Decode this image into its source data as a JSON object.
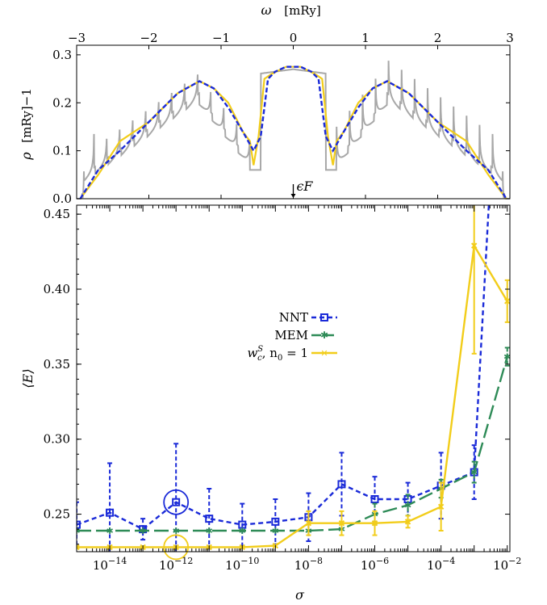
{
  "chart_data": [
    {
      "type": "line",
      "name": "spectral-density",
      "xlabel": "ω",
      "xunit": "[mRy]",
      "ylabel": "ρ",
      "yunit": "[mRy]−1",
      "annotation": "ϵF",
      "xlim": [
        -3,
        3
      ],
      "ylim": [
        0,
        0.32
      ],
      "xticks": [
        "−3",
        "−2",
        "−1",
        "0",
        "1",
        "2",
        "3"
      ],
      "yticks": [
        "0.0",
        "0.1",
        "0.2",
        "0.3"
      ],
      "colors": {
        "gray": "#a8a8a8",
        "yellow": "#f2cd1a",
        "blue": "#1a2ad8"
      },
      "blue_x": [
        -2.95,
        -2.7,
        -2.4,
        -2.0,
        -1.6,
        -1.3,
        -1.1,
        -0.9,
        -0.7,
        -0.55,
        -0.45,
        -0.35,
        -0.25,
        -0.1,
        0,
        0.1,
        0.25,
        0.35,
        0.45,
        0.55,
        0.7,
        0.9,
        1.1,
        1.3,
        1.6,
        2.0,
        2.4,
        2.7,
        2.95
      ],
      "blue_y": [
        0.0,
        0.06,
        0.1,
        0.16,
        0.22,
        0.245,
        0.23,
        0.19,
        0.14,
        0.1,
        0.13,
        0.25,
        0.265,
        0.275,
        0.275,
        0.275,
        0.265,
        0.25,
        0.13,
        0.1,
        0.14,
        0.19,
        0.23,
        0.245,
        0.22,
        0.16,
        0.1,
        0.06,
        0.0
      ],
      "yellow_x": [
        -2.95,
        -2.7,
        -2.4,
        -2.0,
        -1.6,
        -1.3,
        -1.1,
        -0.9,
        -0.7,
        -0.6,
        -0.55,
        -0.48,
        -0.4,
        -0.3,
        -0.1,
        0,
        0.1,
        0.3,
        0.4,
        0.48,
        0.55,
        0.6,
        0.7,
        0.9,
        1.1,
        1.3,
        1.6,
        2.0,
        2.4,
        2.7,
        2.95
      ],
      "yellow_y": [
        0.0,
        0.05,
        0.12,
        0.16,
        0.22,
        0.245,
        0.23,
        0.2,
        0.14,
        0.12,
        0.07,
        0.13,
        0.25,
        0.26,
        0.275,
        0.275,
        0.275,
        0.26,
        0.25,
        0.13,
        0.07,
        0.12,
        0.14,
        0.2,
        0.23,
        0.245,
        0.22,
        0.16,
        0.12,
        0.05,
        0.0
      ]
    },
    {
      "type": "line",
      "name": "energy-vs-sigma",
      "xlabel": "σ",
      "ylabel": "⟨E⟩",
      "xscale": "log",
      "xlim": [
        1e-15,
        0.012
      ],
      "ylim": [
        0.225,
        0.456
      ],
      "xticks": [
        {
          "value": 1e-14,
          "label": "10−14"
        },
        {
          "value": 1e-12,
          "label": "10−12"
        },
        {
          "value": 1e-10,
          "label": "10−10"
        },
        {
          "value": 1e-08,
          "label": "10−8"
        },
        {
          "value": 1e-06,
          "label": "10−6"
        },
        {
          "value": 0.0001,
          "label": "10−4"
        },
        {
          "value": 0.01,
          "label": "10−2"
        }
      ],
      "yticks": [
        "0.25",
        "0.30",
        "0.35",
        "0.40",
        "0.45"
      ],
      "legend_position": "center",
      "series": [
        {
          "name": "NNT",
          "color": "#1a2ad8",
          "dash": "6,4",
          "marker": "square",
          "x": [
            1e-15,
            1e-14,
            1e-13,
            1e-12,
            1e-11,
            1e-10,
            1e-09,
            1e-08,
            1e-07,
            1e-06,
            1e-05,
            0.0001,
            0.001,
            0.003
          ],
          "y": [
            0.243,
            0.251,
            0.24,
            0.258,
            0.247,
            0.243,
            0.245,
            0.248,
            0.27,
            0.26,
            0.26,
            0.269,
            0.278,
            0.47
          ],
          "err": [
            0.015,
            0.033,
            0.007,
            0.039,
            0.02,
            0.014,
            0.015,
            0.016,
            0.021,
            0.015,
            0.011,
            0.022,
            0.018,
            0.0
          ]
        },
        {
          "name": "MEM",
          "color": "#2e8b57",
          "dash": "18,6",
          "marker": "star",
          "x": [
            1e-15,
            1e-14,
            1e-13,
            1e-12,
            1e-11,
            1e-10,
            1e-09,
            1e-08,
            1e-07,
            1e-06,
            1e-05,
            0.0001,
            0.001,
            0.01
          ],
          "y": [
            0.239,
            0.239,
            0.239,
            0.239,
            0.239,
            0.239,
            0.239,
            0.239,
            0.24,
            0.25,
            0.256,
            0.267,
            0.278,
            0.355
          ],
          "err": [
            0.0,
            0.0,
            0.0,
            0.0,
            0.0,
            0.0,
            0.0,
            0.0,
            0.0,
            0.007,
            0.007,
            0.006,
            0.007,
            0.006
          ]
        },
        {
          "name": "w_c^S, n_0 = 1",
          "color": "#f2cd1a",
          "dash": "",
          "marker": "x",
          "x": [
            1e-15,
            1e-14,
            1e-13,
            1e-12,
            1e-11,
            1e-10,
            1e-09,
            1e-08,
            1e-07,
            1e-06,
            1e-05,
            0.0001,
            0.001,
            0.01
          ],
          "y": [
            0.228,
            0.228,
            0.228,
            0.228,
            0.228,
            0.228,
            0.229,
            0.244,
            0.244,
            0.244,
            0.245,
            0.255,
            0.429,
            0.392
          ],
          "err": [
            0.0,
            0.0,
            0.0,
            0.0,
            0.0,
            0.0,
            0.0,
            0.008,
            0.008,
            0.008,
            0.004,
            0.016,
            0.072,
            0.014
          ]
        }
      ],
      "highlight_circles": [
        {
          "x": 1e-12,
          "y": 0.258,
          "color": "#1a2ad8"
        },
        {
          "x": 1e-12,
          "y": 0.228,
          "color": "#f2cd1a"
        }
      ]
    }
  ],
  "legend": {
    "nnt": "NNT",
    "mem": "MEM",
    "wcs_w": "w",
    "wcs_sub": "c",
    "wcs_sup": "S",
    "wcs_rest": ", n",
    "wcs_n_sub": "0",
    "wcs_eq": " = 1"
  }
}
